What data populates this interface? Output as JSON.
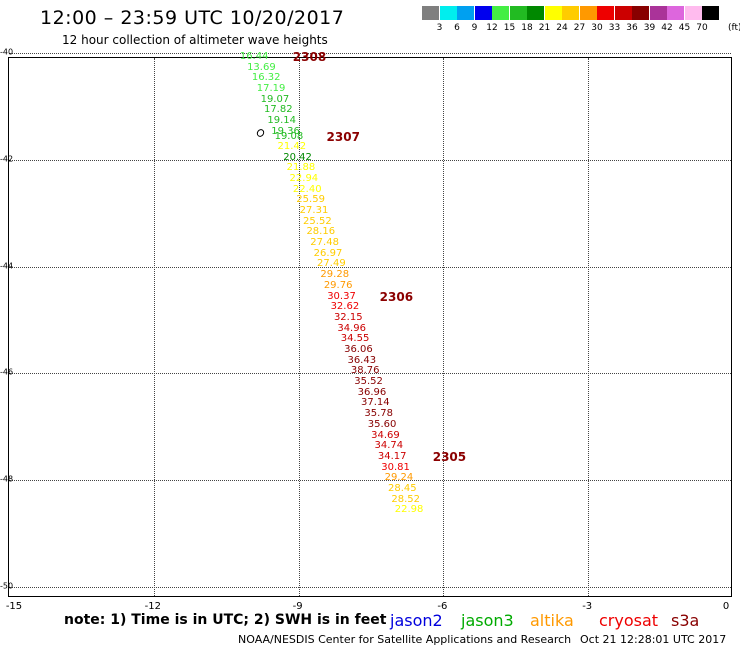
{
  "header": {
    "title": "12:00 – 23:59 UTC 10/20/2017",
    "subtitle": "12 hour collection of altimeter wave heights"
  },
  "legend": {
    "unit": "(ft)",
    "items": [
      {
        "label": "3",
        "color": "#7f7f7f"
      },
      {
        "label": "6",
        "color": "#00eeee"
      },
      {
        "label": "9",
        "color": "#00a0f0"
      },
      {
        "label": "12",
        "color": "#0000ee"
      },
      {
        "label": "15",
        "color": "#44ee44"
      },
      {
        "label": "18",
        "color": "#22bb22"
      },
      {
        "label": "21",
        "color": "#008800"
      },
      {
        "label": "24",
        "color": "#ffff00"
      },
      {
        "label": "27",
        "color": "#ffcc00"
      },
      {
        "label": "30",
        "color": "#ff9900"
      },
      {
        "label": "33",
        "color": "#ee0000"
      },
      {
        "label": "36",
        "color": "#cc0000"
      },
      {
        "label": "39",
        "color": "#880000"
      },
      {
        "label": "42",
        "color": "#aa3399"
      },
      {
        "label": "45",
        "color": "#dd66dd"
      },
      {
        "label": "70",
        "color": "#ffbbee"
      },
      {
        "label": "",
        "color": "#000000"
      }
    ]
  },
  "axes": {
    "y_ticks": [
      "-40",
      "-42",
      "-44",
      "-46",
      "-48",
      "-50"
    ],
    "x_ticks": [
      "-15",
      "-12",
      "-9",
      "-6",
      "-3",
      "0"
    ]
  },
  "chart_data": {
    "type": "scatter",
    "title": "12:00 – 23:59 UTC 10/20/2017",
    "subtitle": "12 hour collection of altimeter wave heights",
    "xlabel": "",
    "ylabel": "",
    "xlim": [
      -15,
      0
    ],
    "ylim": [
      -50.2,
      -40.1
    ],
    "unit": "ft",
    "grid": true,
    "points": [
      {
        "lon": -9.9,
        "lat": -40.1,
        "swh": "16.44",
        "color": "#44ee44"
      },
      {
        "lon": -9.75,
        "lat": -40.3,
        "swh": "13.69",
        "color": "#44ee44"
      },
      {
        "lon": -9.65,
        "lat": -40.5,
        "swh": "16.32",
        "color": "#44ee44"
      },
      {
        "lon": -9.55,
        "lat": -40.7,
        "swh": "17.19",
        "color": "#44ee44"
      },
      {
        "lon": -9.47,
        "lat": -40.9,
        "swh": "19.07",
        "color": "#22bb22"
      },
      {
        "lon": -9.4,
        "lat": -41.1,
        "swh": "17.82",
        "color": "#22bb22"
      },
      {
        "lon": -9.33,
        "lat": -41.3,
        "swh": "19.14",
        "color": "#22bb22"
      },
      {
        "lon": -9.25,
        "lat": -41.5,
        "swh": "19.36",
        "color": "#22bb22"
      },
      {
        "lon": -9.18,
        "lat": -41.6,
        "swh": "19.08",
        "color": "#22bb22"
      },
      {
        "lon": -9.12,
        "lat": -41.78,
        "swh": "21.42",
        "color": "#ffff00"
      },
      {
        "lon": -9.0,
        "lat": -41.98,
        "swh": "20.42",
        "color": "#008800"
      },
      {
        "lon": -8.93,
        "lat": -42.18,
        "swh": "21.88",
        "color": "#ffff00"
      },
      {
        "lon": -8.87,
        "lat": -42.38,
        "swh": "22.94",
        "color": "#ffff00"
      },
      {
        "lon": -8.8,
        "lat": -42.58,
        "swh": "22.40",
        "color": "#ffff00"
      },
      {
        "lon": -8.73,
        "lat": -42.78,
        "swh": "25.59",
        "color": "#ffcc00"
      },
      {
        "lon": -8.66,
        "lat": -42.98,
        "swh": "27.31",
        "color": "#ffcc00"
      },
      {
        "lon": -8.59,
        "lat": -43.18,
        "swh": "25.52",
        "color": "#ffcc00"
      },
      {
        "lon": -8.52,
        "lat": -43.38,
        "swh": "28.16",
        "color": "#ffcc00"
      },
      {
        "lon": -8.44,
        "lat": -43.58,
        "swh": "27.48",
        "color": "#ffcc00"
      },
      {
        "lon": -8.37,
        "lat": -43.78,
        "swh": "26.97",
        "color": "#ffcc00"
      },
      {
        "lon": -8.3,
        "lat": -43.98,
        "swh": "27.49",
        "color": "#ffcc00"
      },
      {
        "lon": -8.23,
        "lat": -44.18,
        "swh": "29.28",
        "color": "#ff9900"
      },
      {
        "lon": -8.16,
        "lat": -44.38,
        "swh": "29.76",
        "color": "#ff9900"
      },
      {
        "lon": -8.09,
        "lat": -44.58,
        "swh": "30.37",
        "color": "#ee0000"
      },
      {
        "lon": -8.02,
        "lat": -44.78,
        "swh": "32.62",
        "color": "#ee0000"
      },
      {
        "lon": -7.95,
        "lat": -44.98,
        "swh": "32.15",
        "color": "#cc0000"
      },
      {
        "lon": -7.88,
        "lat": -45.18,
        "swh": "34.96",
        "color": "#cc0000"
      },
      {
        "lon": -7.81,
        "lat": -45.38,
        "swh": "34.55",
        "color": "#cc0000"
      },
      {
        "lon": -7.74,
        "lat": -45.58,
        "swh": "36.06",
        "color": "#880000"
      },
      {
        "lon": -7.67,
        "lat": -45.78,
        "swh": "36.43",
        "color": "#880000"
      },
      {
        "lon": -7.6,
        "lat": -45.98,
        "swh": "38.76",
        "color": "#880000"
      },
      {
        "lon": -7.53,
        "lat": -46.18,
        "swh": "35.52",
        "color": "#880000"
      },
      {
        "lon": -7.46,
        "lat": -46.38,
        "swh": "36.96",
        "color": "#880000"
      },
      {
        "lon": -7.39,
        "lat": -46.58,
        "swh": "37.14",
        "color": "#880000"
      },
      {
        "lon": -7.32,
        "lat": -46.78,
        "swh": "35.78",
        "color": "#880000"
      },
      {
        "lon": -7.25,
        "lat": -46.98,
        "swh": "35.60",
        "color": "#880000"
      },
      {
        "lon": -7.18,
        "lat": -47.18,
        "swh": "34.69",
        "color": "#cc0000"
      },
      {
        "lon": -7.11,
        "lat": -47.38,
        "swh": "34.74",
        "color": "#cc0000"
      },
      {
        "lon": -7.04,
        "lat": -47.58,
        "swh": "34.17",
        "color": "#cc0000"
      },
      {
        "lon": -6.97,
        "lat": -47.78,
        "swh": "30.81",
        "color": "#ee0000"
      },
      {
        "lon": -6.9,
        "lat": -47.98,
        "swh": "29.24",
        "color": "#ff9900"
      },
      {
        "lon": -6.83,
        "lat": -48.18,
        "swh": "28.45",
        "color": "#ffcc00"
      },
      {
        "lon": -6.76,
        "lat": -48.38,
        "swh": "28.52",
        "color": "#ffcc00"
      },
      {
        "lon": -6.69,
        "lat": -48.58,
        "swh": "22.98",
        "color": "#ffff00"
      }
    ],
    "time_labels": [
      {
        "label": "2308",
        "lon": -9.1,
        "lat": -40.1
      },
      {
        "label": "2307",
        "lon": -8.4,
        "lat": -41.6
      },
      {
        "label": "2306",
        "lon": -7.3,
        "lat": -44.58
      },
      {
        "label": "2305",
        "lon": -6.2,
        "lat": -47.58
      }
    ]
  },
  "footer": {
    "note": "note:  1) Time is in UTC;  2) SWH is in feet",
    "satellites": [
      {
        "name": "jason2",
        "color": "#0000dd"
      },
      {
        "name": "jason3",
        "color": "#00aa00"
      },
      {
        "name": "altika",
        "color": "#ff9900"
      },
      {
        "name": "cryosat",
        "color": "#ee0000"
      },
      {
        "name": "s3a",
        "color": "#880000"
      }
    ],
    "credit": "NOAA/NESDIS Center for Satellite Applications and Research",
    "timestamp": "Oct 21 12:28:01 UTC 2017"
  }
}
